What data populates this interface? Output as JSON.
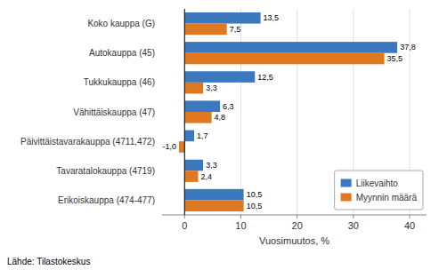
{
  "chart_data": {
    "type": "bar",
    "orientation": "horizontal",
    "categories": [
      "Erikoiskauppa (474-477)",
      "Tavaratalokauppa (4719)",
      "Päivittäistavarakauppa (4711,472)",
      "Vähittäiskauppa (47)",
      "Tukkukauppa (46)",
      "Autokauppa (45)",
      "Koko kauppa (G)"
    ],
    "series": [
      {
        "name": "Liikevaihto",
        "color": "#3c78be",
        "values": [
          10.5,
          3.3,
          1.7,
          6.3,
          12.5,
          37.8,
          13.5
        ],
        "value_labels": [
          "10,5",
          "3,3",
          "1,7",
          "6,3",
          "12,5",
          "37,8",
          "13,5"
        ]
      },
      {
        "name": "Myynnin määrä",
        "color": "#e07820",
        "values": [
          10.5,
          2.4,
          -1.0,
          4.8,
          3.3,
          35.5,
          7.5
        ],
        "value_labels": [
          "10,5",
          "2,4",
          "-1,0",
          "4,8",
          "3,3",
          "35,5",
          "7,5"
        ]
      }
    ],
    "xlabel": "Vuosimuutos, %",
    "xlim": [
      -4,
      43
    ],
    "xticks": [
      0,
      10,
      20,
      30,
      40
    ],
    "grid": true,
    "legend": "lower right",
    "data_labels": true,
    "footnote": "Lähde: Tilastokeskus"
  }
}
